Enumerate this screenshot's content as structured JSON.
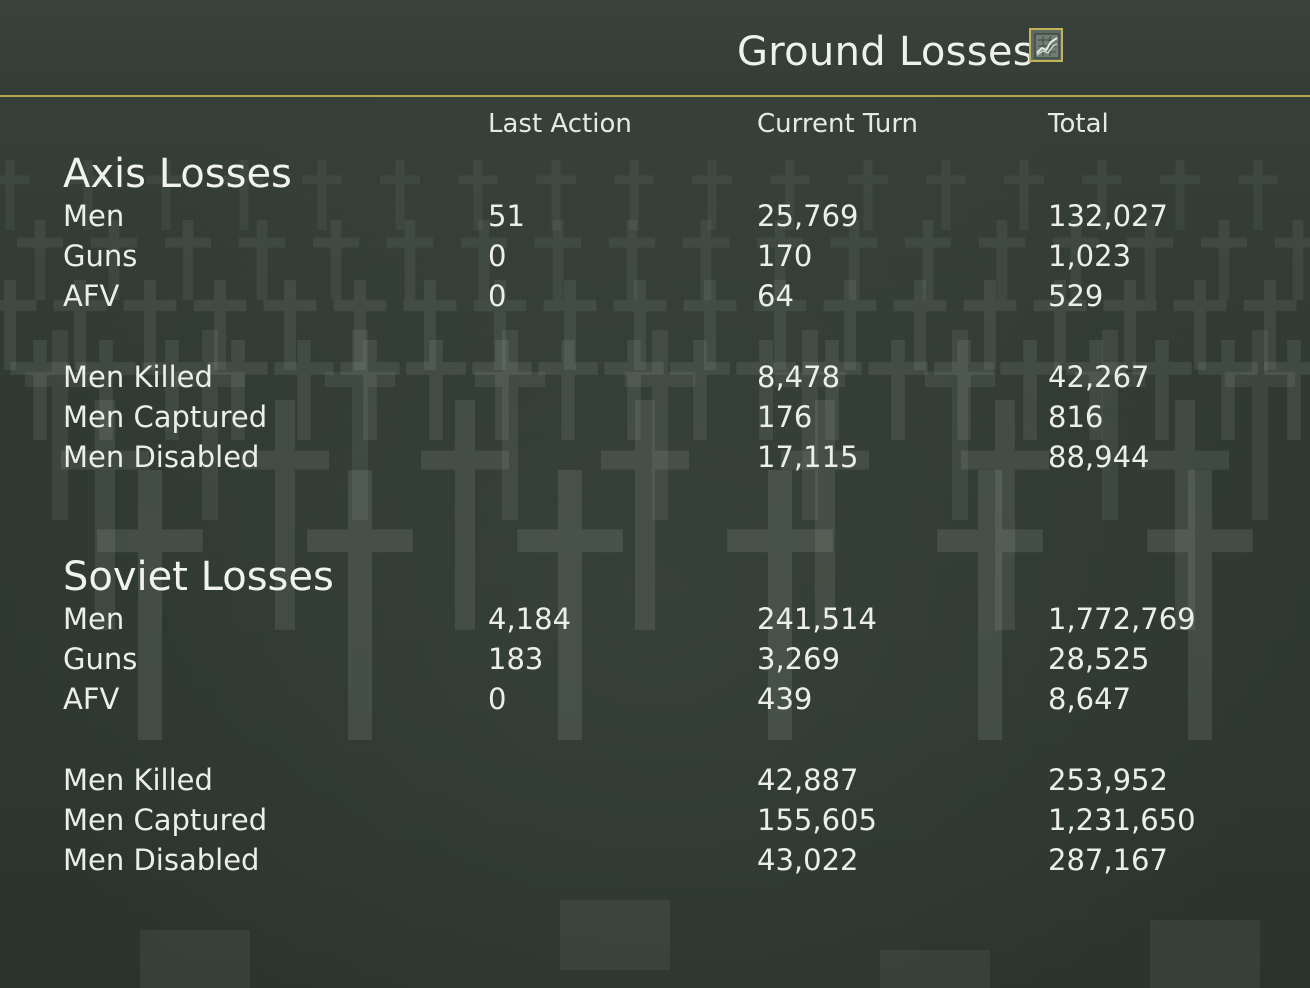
{
  "header": {
    "title": "Ground Losses",
    "chart_button_icon": "chart-icon"
  },
  "columns": {
    "last_action": "Last Action",
    "current_turn": "Current Turn",
    "total": "Total"
  },
  "axis": {
    "title": "Axis Losses",
    "rows": [
      {
        "label": "Men",
        "last": "51",
        "turn": "25,769",
        "total": "132,027"
      },
      {
        "label": "Guns",
        "last": "0",
        "turn": "170",
        "total": "1,023"
      },
      {
        "label": "AFV",
        "last": "0",
        "turn": "64",
        "total": "529"
      },
      {
        "label": "Men Killed",
        "last": "",
        "turn": "8,478",
        "total": "42,267"
      },
      {
        "label": "Men Captured",
        "last": "",
        "turn": "176",
        "total": "816"
      },
      {
        "label": "Men Disabled",
        "last": "",
        "turn": "17,115",
        "total": "88,944"
      }
    ]
  },
  "soviet": {
    "title": "Soviet Losses",
    "rows": [
      {
        "label": "Men",
        "last": "4,184",
        "turn": "241,514",
        "total": "1,772,769"
      },
      {
        "label": "Guns",
        "last": "183",
        "turn": "3,269",
        "total": "28,525"
      },
      {
        "label": "AFV",
        "last": "0",
        "turn": "439",
        "total": "8,647"
      },
      {
        "label": "Men Killed",
        "last": "",
        "turn": "42,887",
        "total": "253,952"
      },
      {
        "label": "Men Captured",
        "last": "",
        "turn": "155,605",
        "total": "1,231,650"
      },
      {
        "label": "Men Disabled",
        "last": "",
        "turn": "43,022",
        "total": "287,167"
      }
    ]
  }
}
